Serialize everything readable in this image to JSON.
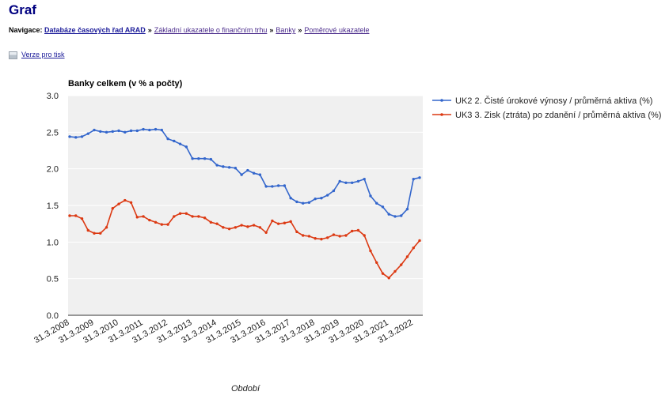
{
  "page": {
    "title": "Graf",
    "nav_label": "Navigace:",
    "breadcrumbs": [
      "Databáze časových řad ARAD",
      "Základní ukazatele o finančním trhu",
      "Banky",
      "Poměrové ukazatele"
    ],
    "print_link": "Verze pro tisk"
  },
  "chart_data": {
    "type": "line",
    "title": "Banky celkem (v % a počty)",
    "xlabel": "Období",
    "ylabel": "",
    "ylim": [
      0,
      3
    ],
    "yticks": [
      "0.0",
      "0.5",
      "1.0",
      "1.5",
      "2.0",
      "2.5",
      "3.0"
    ],
    "grid": true,
    "legend_position": "right",
    "background": "#f0f0f0",
    "x_tick_labels": [
      "31.3.2008",
      "31.3.2009",
      "31.3.2010",
      "31.3.2011",
      "31.3.2012",
      "31.3.2013",
      "31.3.2014",
      "31.3.2015",
      "31.3.2016",
      "31.3.2017",
      "31.3.2018",
      "31.3.2019",
      "31.3.2020",
      "31.3.2021",
      "31.3.2022"
    ],
    "x_start": "31.3.2008",
    "x_frequency": "quarterly",
    "series": [
      {
        "name": "UK2 2. Čisté úrokové výnosy / průměrná aktiva (%)",
        "color": "#3366cc",
        "values": [
          2.44,
          2.43,
          2.44,
          2.48,
          2.53,
          2.51,
          2.5,
          2.51,
          2.52,
          2.5,
          2.52,
          2.52,
          2.54,
          2.53,
          2.54,
          2.53,
          2.41,
          2.38,
          2.34,
          2.3,
          2.14,
          2.14,
          2.14,
          2.13,
          2.05,
          2.03,
          2.02,
          2.01,
          1.92,
          1.98,
          1.94,
          1.92,
          1.76,
          1.76,
          1.77,
          1.77,
          1.6,
          1.55,
          1.53,
          1.54,
          1.59,
          1.6,
          1.64,
          1.7,
          1.83,
          1.81,
          1.81,
          1.83,
          1.86,
          1.63,
          1.53,
          1.48,
          1.38,
          1.35,
          1.36,
          1.45,
          1.86,
          1.88
        ]
      },
      {
        "name": "UK3 3. Zisk (ztráta) po zdanění / průměrná aktiva (%)",
        "color": "#dc3912",
        "values": [
          1.36,
          1.36,
          1.32,
          1.16,
          1.12,
          1.12,
          1.2,
          1.46,
          1.52,
          1.57,
          1.54,
          1.34,
          1.35,
          1.3,
          1.27,
          1.24,
          1.24,
          1.35,
          1.39,
          1.39,
          1.35,
          1.35,
          1.33,
          1.27,
          1.25,
          1.2,
          1.18,
          1.2,
          1.23,
          1.21,
          1.23,
          1.2,
          1.13,
          1.29,
          1.25,
          1.26,
          1.28,
          1.14,
          1.09,
          1.08,
          1.05,
          1.04,
          1.06,
          1.1,
          1.08,
          1.09,
          1.15,
          1.16,
          1.09,
          0.88,
          0.72,
          0.57,
          0.51,
          0.6,
          0.69,
          0.8,
          0.92,
          1.02
        ]
      }
    ]
  }
}
